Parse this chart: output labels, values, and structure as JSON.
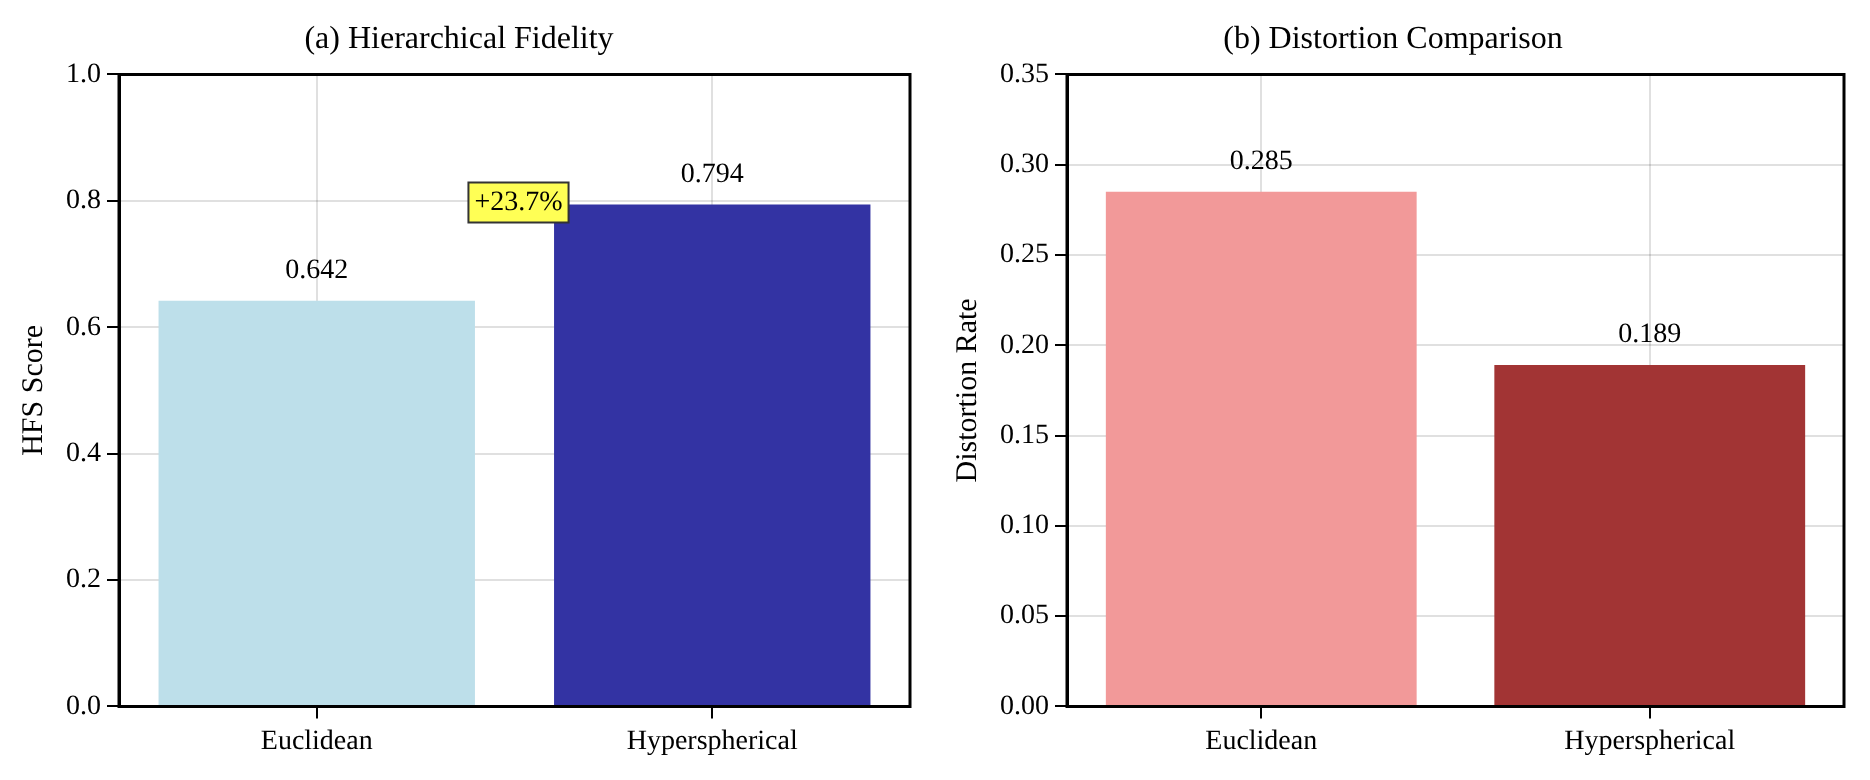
{
  "chart_data": [
    {
      "type": "bar",
      "title": "(a) Hierarchical Fidelity",
      "ylabel": "HFS Score",
      "categories": [
        "Euclidean",
        "Hyperspherical"
      ],
      "values": [
        0.642,
        0.794
      ],
      "colors": [
        "#bddfea",
        "#3333a3"
      ],
      "ylim": [
        0,
        1.0
      ],
      "yticks": [
        {
          "value": 0,
          "label": "0.0"
        },
        0.2,
        0.4,
        0.6,
        0.8,
        {
          "value": 1,
          "label": "1.0"
        }
      ],
      "grid": true,
      "data_labels": true,
      "annotations": [
        "+23.7%"
      ]
    },
    {
      "type": "bar",
      "title": "(b) Distortion Comparison",
      "ylabel": "Distortion Rate",
      "categories": [
        "Euclidean",
        "Hyperspherical"
      ],
      "values": [
        0.285,
        0.189
      ],
      "colors": [
        "#f29999",
        "#a23434"
      ],
      "ylim": [
        0,
        0.35
      ],
      "yticks": [
        {
          "value": 0,
          "label": "0.00"
        },
        0.05,
        {
          "value": 0.1,
          "label": "0.10"
        },
        0.15,
        {
          "value": 0.2,
          "label": "0.20"
        },
        0.25,
        {
          "value": 0.3,
          "label": "0.30"
        },
        0.35
      ],
      "grid": true,
      "data_labels": true
    }
  ]
}
